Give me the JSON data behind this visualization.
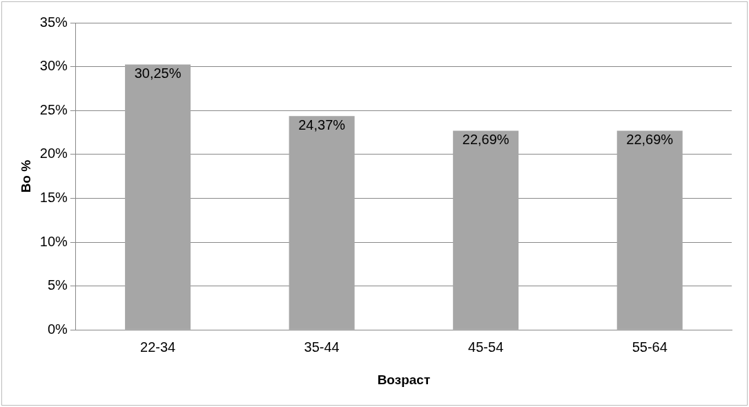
{
  "chart_data": {
    "type": "bar",
    "xlabel": "Возраст",
    "ylabel": "Во %",
    "categories": [
      "22-34",
      "35-44",
      "45-54",
      "55-64"
    ],
    "values": [
      30.25,
      24.37,
      22.69,
      22.69
    ],
    "value_labels": [
      "30,25%",
      "24,37%",
      "22,69%",
      "22,69%"
    ],
    "color": "#a6a6a6",
    "ylim": [
      0,
      35
    ],
    "yticks": [
      {
        "value": 0,
        "label": "0%"
      },
      {
        "value": 5,
        "label": "5%"
      },
      {
        "value": 10,
        "label": "10%"
      },
      {
        "value": 15,
        "label": "15%"
      },
      {
        "value": 20,
        "label": "20%"
      },
      {
        "value": 25,
        "label": "25%"
      },
      {
        "value": 30,
        "label": "30%"
      },
      {
        "value": 35,
        "label": "35%"
      }
    ],
    "grid": "y",
    "legend": false
  }
}
